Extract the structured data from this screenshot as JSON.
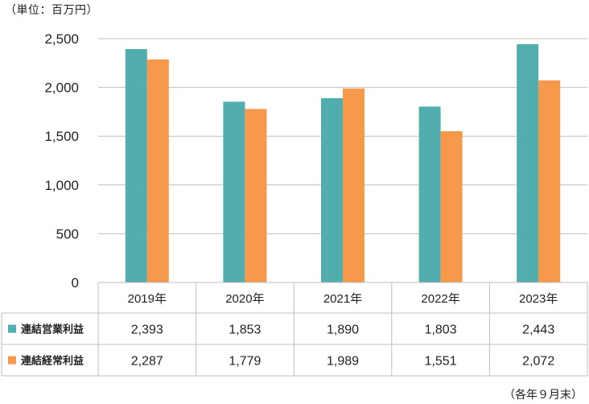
{
  "unit_label": "（単位：百万円）",
  "note_label": "（各年９月末）",
  "colors": {
    "operating": "#52ADAF",
    "ordinary": "#F6994A",
    "grid": "#BFBFBF",
    "border": "#BFBFBF"
  },
  "chart_data": {
    "type": "bar",
    "categories": [
      "2019年",
      "2020年",
      "2021年",
      "2022年",
      "2023年"
    ],
    "series": [
      {
        "name": "連結営業利益",
        "values": [
          2393,
          1853,
          1890,
          1803,
          2443
        ],
        "labels": [
          "2,393",
          "1,853",
          "1,890",
          "1,803",
          "2,443"
        ]
      },
      {
        "name": "連結経常利益",
        "values": [
          2287,
          1779,
          1989,
          1551,
          2072
        ],
        "labels": [
          "2,287",
          "1,779",
          "1,989",
          "1,551",
          "2,072"
        ]
      }
    ],
    "yticks": [
      {
        "value": 0,
        "label": "0"
      },
      {
        "value": 500,
        "label": "500"
      },
      {
        "value": 1000,
        "label": "1,000"
      },
      {
        "value": 1500,
        "label": "1,500"
      },
      {
        "value": 2000,
        "label": "2,000"
      },
      {
        "value": 2500,
        "label": "2,500"
      }
    ],
    "ylim": [
      0,
      2500
    ],
    "grid": true,
    "legend": "table-left"
  }
}
